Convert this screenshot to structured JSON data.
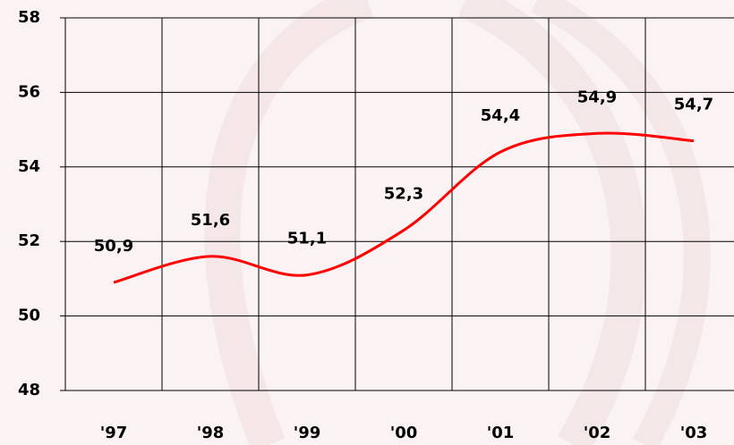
{
  "chart_data": {
    "type": "line",
    "categories": [
      "'97",
      "'98",
      "'99",
      "'00",
      "'01",
      "'02",
      "'03"
    ],
    "series": [
      {
        "color": "#ff0000",
        "values": [
          50.9,
          51.6,
          51.1,
          52.3,
          54.4,
          54.9,
          54.7
        ],
        "value_labels": [
          "50,9",
          "51,6",
          "51,1",
          "52,3",
          "54,4",
          "54,9",
          "54,7"
        ]
      }
    ],
    "ylim": [
      48,
      58
    ],
    "yticks": [
      48,
      50,
      52,
      54,
      56,
      58
    ],
    "grid": true
  }
}
